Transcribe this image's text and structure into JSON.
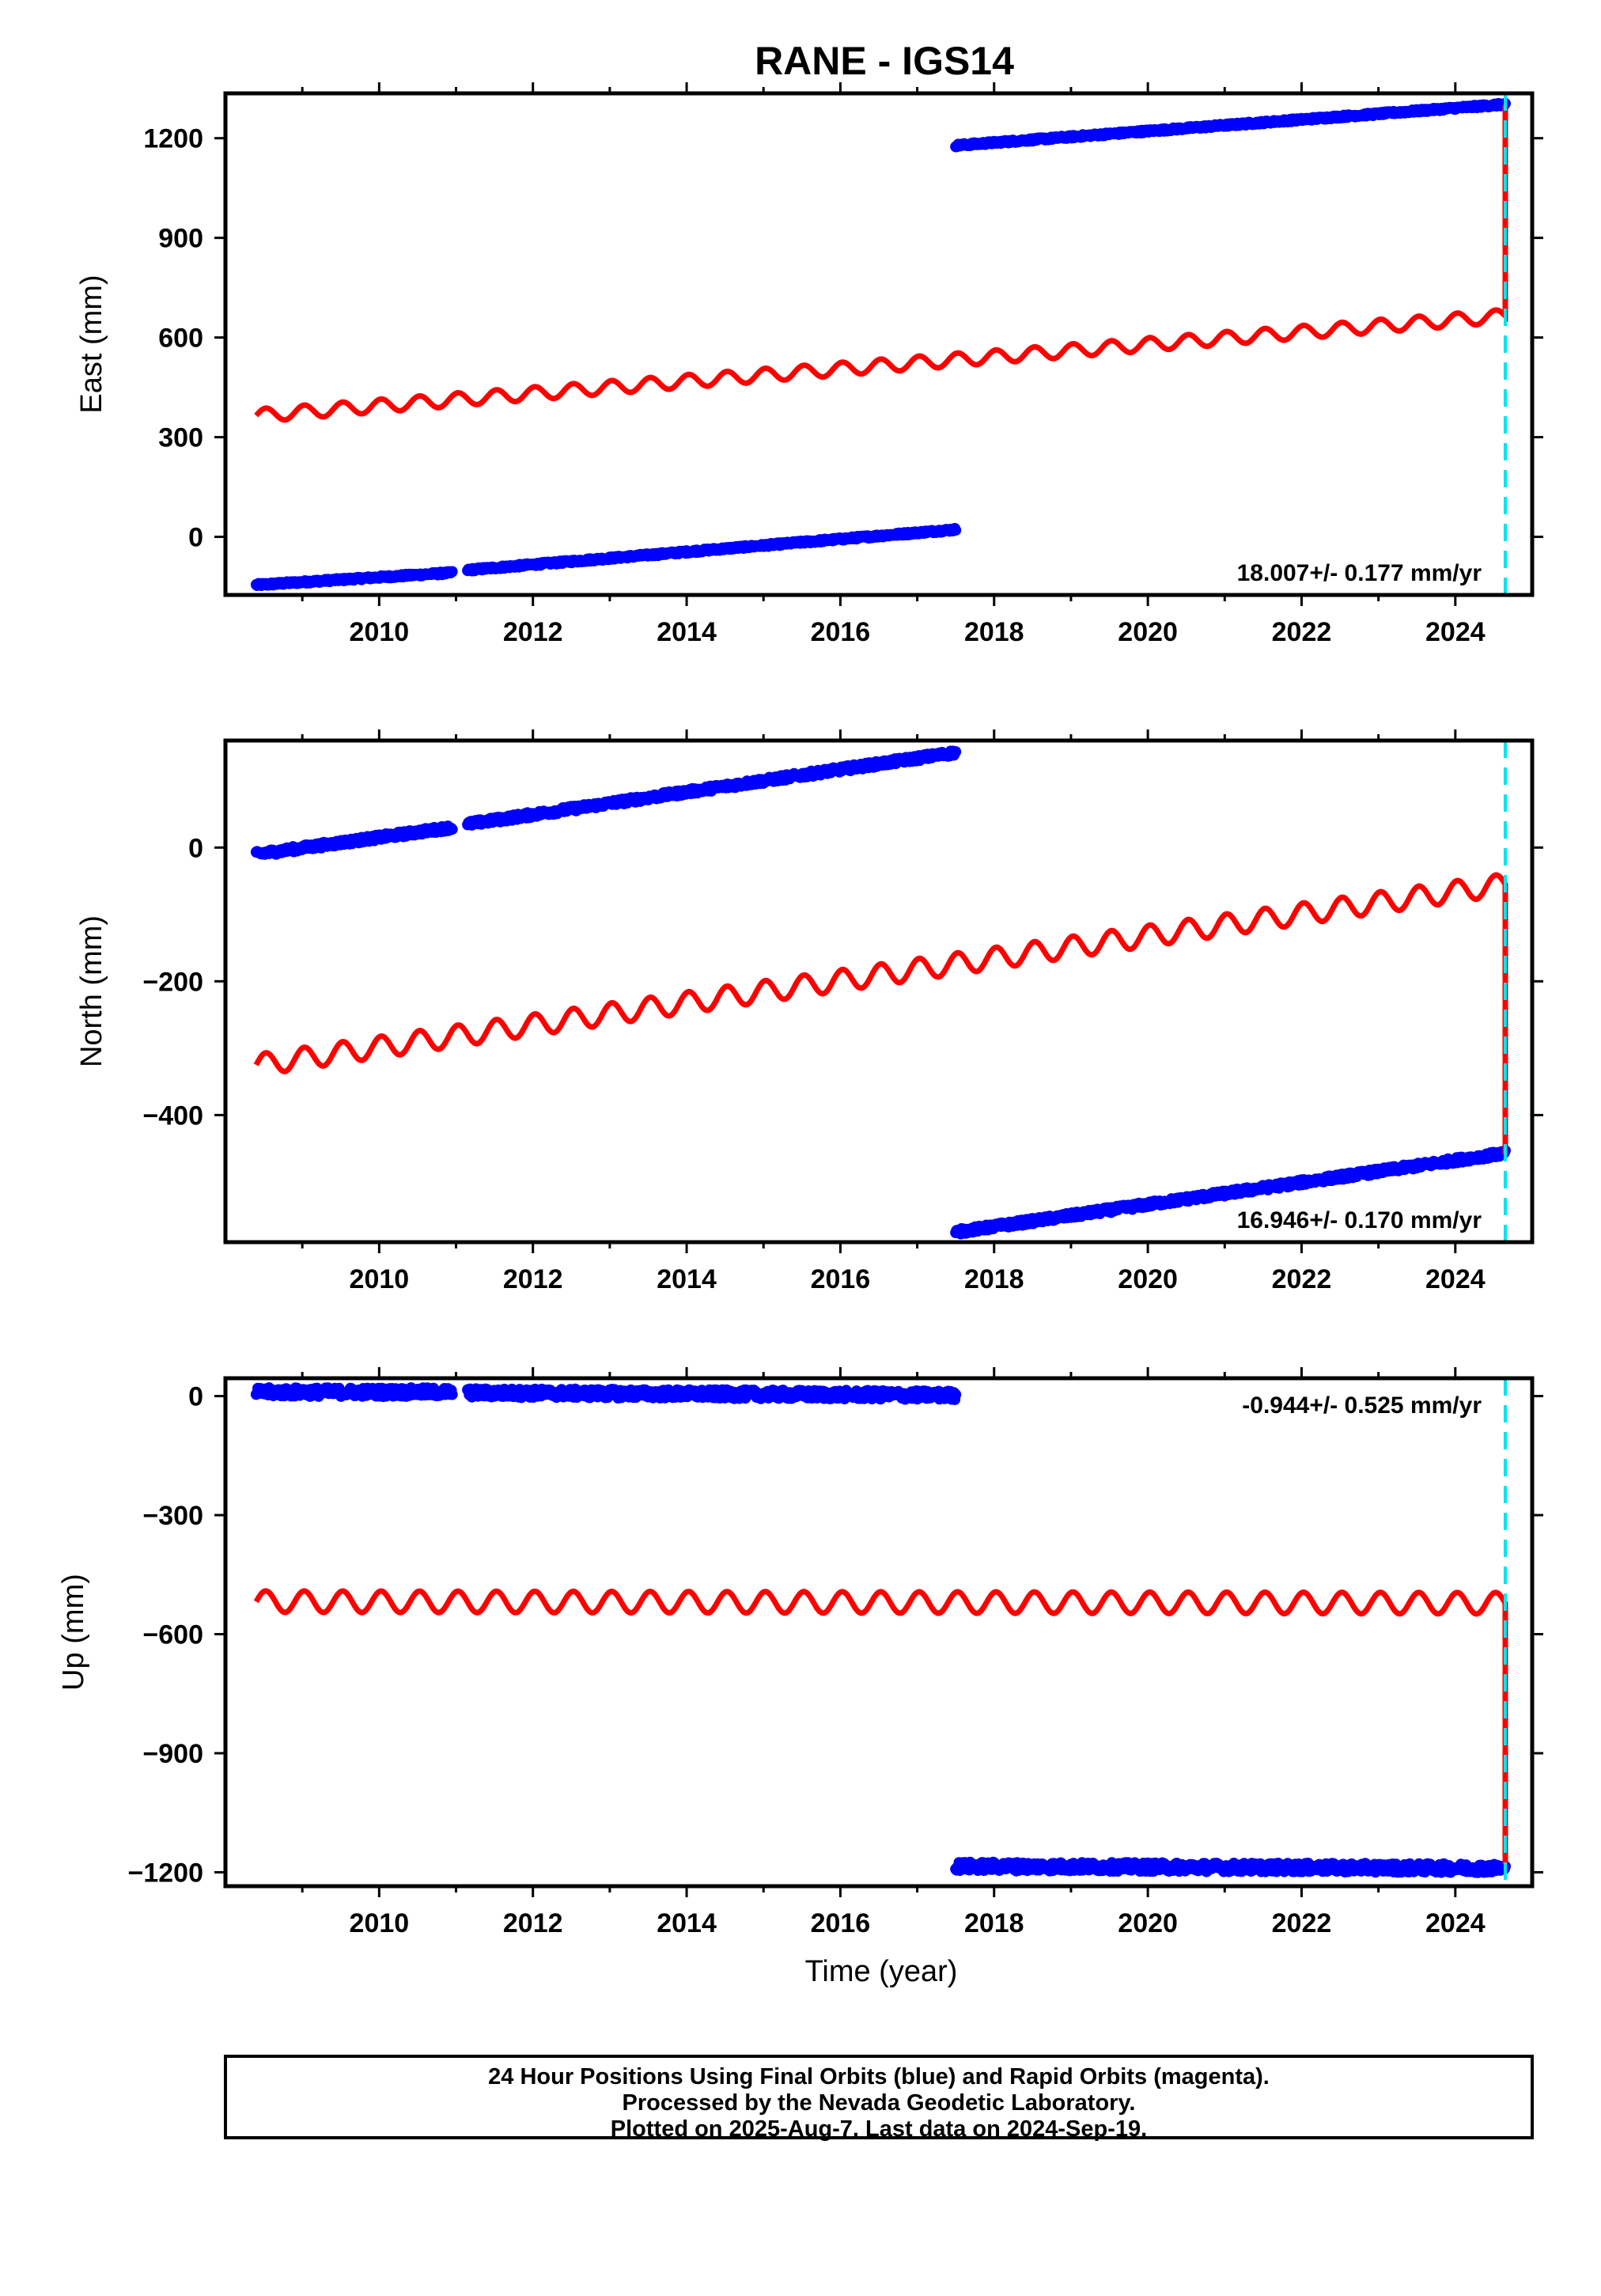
{
  "chart_data": {
    "type": "scatter",
    "title": "RANE - IGS14",
    "xlabel": "Time (year)",
    "xlim": [
      2008.0,
      2025.0
    ],
    "xticks": [
      "2010",
      "2012",
      "2014",
      "2016",
      "2018",
      "2020",
      "2022",
      "2024"
    ],
    "event_line_year": 2024.65,
    "panels": [
      {
        "name": "east",
        "ylabel": "East (mm)",
        "ylim": [
          -175,
          1335
        ],
        "yticks": [
          {
            "value": 0,
            "label": "0"
          },
          {
            "value": 300,
            "label": "300"
          },
          {
            "value": 600,
            "label": "600"
          },
          {
            "value": 900,
            "label": "900"
          },
          {
            "value": 1200,
            "label": "1200"
          }
        ],
        "rate_label": "18.007+/- 0.177 mm/yr",
        "rate_position": "bottom-right",
        "final_series": [
          {
            "start": 2008.4,
            "end": 2010.95,
            "y0": -145,
            "y1": -108
          },
          {
            "start": 2011.15,
            "end": 2017.5,
            "y0": -100,
            "y1": 22
          },
          {
            "start": 2017.5,
            "end": 2024.65,
            "y0": 1178,
            "y1": 1302
          }
        ],
        "model": {
          "start": 2008.4,
          "end": 2024.65,
          "y0": 365,
          "y1": 665,
          "amplitude": 20,
          "jump_to": 1300
        }
      },
      {
        "name": "north",
        "ylabel": "North (mm)",
        "ylim": [
          -590,
          160
        ],
        "yticks": [
          {
            "value": -400,
            "label": "−400"
          },
          {
            "value": -200,
            "label": "−200"
          },
          {
            "value": 0,
            "label": "0"
          }
        ],
        "rate_label": "16.946+/- 0.170 mm/yr",
        "rate_position": "bottom-right",
        "final_series": [
          {
            "start": 2008.4,
            "end": 2010.95,
            "y0": -10,
            "y1": 30
          },
          {
            "start": 2011.15,
            "end": 2017.5,
            "y0": 35,
            "y1": 142
          },
          {
            "start": 2017.5,
            "end": 2024.65,
            "y0": -575,
            "y1": -457
          }
        ],
        "model": {
          "start": 2008.4,
          "end": 2024.65,
          "y0": -325,
          "y1": -55,
          "amplitude": 16,
          "jump_to": -458
        }
      },
      {
        "name": "up",
        "ylabel": "Up (mm)",
        "ylim": [
          -1235,
          45
        ],
        "yticks": [
          {
            "value": -1200,
            "label": "−1200"
          },
          {
            "value": -900,
            "label": "−900"
          },
          {
            "value": -600,
            "label": "−600"
          },
          {
            "value": -300,
            "label": "−300"
          },
          {
            "value": 0,
            "label": "0"
          }
        ],
        "rate_label": "-0.944+/- 0.525 mm/yr",
        "rate_position": "top-right",
        "final_series": [
          {
            "start": 2008.4,
            "end": 2010.95,
            "y0": 10,
            "y1": 10
          },
          {
            "start": 2011.15,
            "end": 2017.5,
            "y0": 8,
            "y1": 2
          },
          {
            "start": 2017.5,
            "end": 2024.65,
            "y0": -1185,
            "y1": -1190
          }
        ],
        "model": {
          "start": 2008.4,
          "end": 2024.65,
          "y0": -518,
          "y1": -522,
          "amplitude": 27,
          "jump_to": -1180
        }
      }
    ]
  },
  "footer": {
    "line1": "24 Hour Positions Using Final Orbits (blue) and Rapid Orbits (magenta).",
    "line2": "Processed by the Nevada Geodetic Laboratory.",
    "line3": "Plotted on 2025-Aug-7. Last data on 2024-Sep-19."
  },
  "colors": {
    "final": "#0000ff",
    "model": "#ff0000",
    "event": "#00e5ee",
    "frame": "#000000"
  }
}
